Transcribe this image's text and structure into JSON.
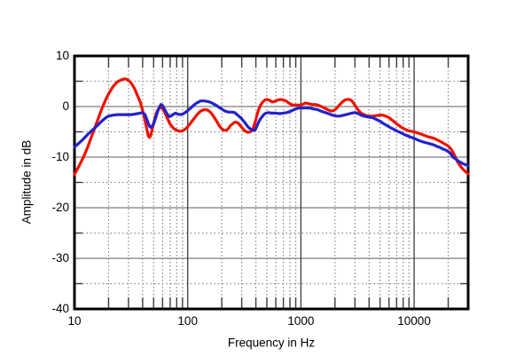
{
  "chart_data": {
    "type": "line",
    "title": "",
    "xlabel": "Frequency in Hz",
    "ylabel": "Amplitude in dB",
    "x_scale": "log",
    "xlim": [
      10,
      30000
    ],
    "ylim": [
      -40,
      10
    ],
    "grid": true,
    "legend": null,
    "x_ticks": [
      {
        "value": 10,
        "label": "10"
      },
      {
        "value": 100,
        "label": "100"
      },
      {
        "value": 1000,
        "label": "1000"
      },
      {
        "value": 10000,
        "label": "10000"
      }
    ],
    "y_ticks": [
      {
        "value": 10,
        "label": "10"
      },
      {
        "value": 0,
        "label": "0"
      },
      {
        "value": -10,
        "label": "-10"
      },
      {
        "value": -20,
        "label": "-20"
      },
      {
        "value": -30,
        "label": "-30"
      },
      {
        "value": -40,
        "label": "-40"
      }
    ],
    "x_major_gridlines": [
      100,
      1000,
      10000
    ],
    "x_minor_gridlines": [
      20,
      30,
      40,
      50,
      60,
      70,
      80,
      90,
      200,
      300,
      400,
      500,
      600,
      700,
      800,
      900,
      2000,
      3000,
      4000,
      5000,
      6000,
      7000,
      8000,
      9000,
      20000
    ],
    "y_major_gridlines": [
      0,
      -10,
      -20,
      -30
    ],
    "y_minor_gridlines": [
      5,
      -5,
      -15,
      -25,
      -35
    ],
    "colors": {
      "frame": "#000000",
      "grid_major_h": "#7d7d7d",
      "grid_major_v": "#3d3d3d",
      "grid_minor": "#8a8a8a",
      "minor_tick": "#3d3d3d"
    },
    "series": [
      {
        "name": "red-trace",
        "color": "#ee1100",
        "points": [
          [
            10,
            -13.4
          ],
          [
            11,
            -11.7
          ],
          [
            12,
            -10.0
          ],
          [
            13,
            -8.2
          ],
          [
            14,
            -6.2
          ],
          [
            15,
            -4.4
          ],
          [
            16,
            -2.7
          ],
          [
            17,
            -1.1
          ],
          [
            18,
            0.3
          ],
          [
            19,
            1.5
          ],
          [
            20,
            2.5
          ],
          [
            22,
            4.0
          ],
          [
            24,
            4.9
          ],
          [
            26,
            5.3
          ],
          [
            28,
            5.5
          ],
          [
            30,
            5.2
          ],
          [
            32,
            4.5
          ],
          [
            34,
            3.5
          ],
          [
            36,
            2.2
          ],
          [
            38,
            1.0
          ],
          [
            40,
            -0.8
          ],
          [
            42,
            -2.8
          ],
          [
            44,
            -5.0
          ],
          [
            45,
            -5.9
          ],
          [
            46,
            -6.1
          ],
          [
            47,
            -5.8
          ],
          [
            48,
            -5.0
          ],
          [
            50,
            -3.3
          ],
          [
            52,
            -1.8
          ],
          [
            54,
            -0.8
          ],
          [
            56,
            -0.3
          ],
          [
            58,
            -0.2
          ],
          [
            60,
            -0.5
          ],
          [
            63,
            -1.2
          ],
          [
            66,
            -2.3
          ],
          [
            70,
            -3.5
          ],
          [
            75,
            -4.3
          ],
          [
            80,
            -4.7
          ],
          [
            85,
            -4.9
          ],
          [
            90,
            -4.8
          ],
          [
            95,
            -4.5
          ],
          [
            100,
            -4.0
          ],
          [
            105,
            -3.4
          ],
          [
            110,
            -2.8
          ],
          [
            120,
            -1.7
          ],
          [
            130,
            -0.9
          ],
          [
            140,
            -0.6
          ],
          [
            150,
            -0.7
          ],
          [
            160,
            -1.2
          ],
          [
            170,
            -2.0
          ],
          [
            180,
            -2.9
          ],
          [
            190,
            -3.8
          ],
          [
            200,
            -4.4
          ],
          [
            210,
            -4.7
          ],
          [
            220,
            -4.7
          ],
          [
            230,
            -4.3
          ],
          [
            240,
            -3.7
          ],
          [
            250,
            -3.4
          ],
          [
            260,
            -3.1
          ],
          [
            270,
            -3.1
          ],
          [
            280,
            -3.3
          ],
          [
            290,
            -3.7
          ],
          [
            300,
            -4.1
          ],
          [
            320,
            -4.8
          ],
          [
            340,
            -5.1
          ],
          [
            360,
            -5.0
          ],
          [
            380,
            -4.2
          ],
          [
            400,
            -2.6
          ],
          [
            410,
            -1.6
          ],
          [
            420,
            -0.8
          ],
          [
            440,
            0.3
          ],
          [
            460,
            0.9
          ],
          [
            480,
            1.3
          ],
          [
            500,
            1.4
          ],
          [
            520,
            1.3
          ],
          [
            540,
            1.1
          ],
          [
            560,
            0.9
          ],
          [
            580,
            1.0
          ],
          [
            600,
            1.1
          ],
          [
            630,
            1.3
          ],
          [
            660,
            1.4
          ],
          [
            700,
            1.3
          ],
          [
            740,
            1.1
          ],
          [
            780,
            0.7
          ],
          [
            820,
            0.4
          ],
          [
            860,
            0.3
          ],
          [
            900,
            0.3
          ],
          [
            950,
            0.3
          ],
          [
            1000,
            0.3
          ],
          [
            1050,
            0.5
          ],
          [
            1100,
            0.7
          ],
          [
            1150,
            0.6
          ],
          [
            1250,
            0.4
          ],
          [
            1350,
            0.4
          ],
          [
            1450,
            0.2
          ],
          [
            1550,
            -0.1
          ],
          [
            1650,
            -0.4
          ],
          [
            1750,
            -0.7
          ],
          [
            1850,
            -0.9
          ],
          [
            1950,
            -0.8
          ],
          [
            2050,
            -0.4
          ],
          [
            2150,
            0.1
          ],
          [
            2250,
            0.6
          ],
          [
            2350,
            1.0
          ],
          [
            2450,
            1.3
          ],
          [
            2550,
            1.4
          ],
          [
            2650,
            1.4
          ],
          [
            2750,
            1.3
          ],
          [
            2850,
            1.0
          ],
          [
            2950,
            0.5
          ],
          [
            3050,
            0.0
          ],
          [
            3200,
            -0.7
          ],
          [
            3400,
            -1.3
          ],
          [
            3600,
            -1.6
          ],
          [
            3800,
            -1.8
          ],
          [
            4000,
            -1.9
          ],
          [
            4300,
            -1.9
          ],
          [
            4600,
            -1.8
          ],
          [
            5000,
            -1.7
          ],
          [
            5300,
            -1.7
          ],
          [
            5600,
            -1.9
          ],
          [
            6000,
            -2.2
          ],
          [
            6500,
            -2.8
          ],
          [
            7000,
            -3.4
          ],
          [
            7500,
            -3.9
          ],
          [
            8000,
            -4.3
          ],
          [
            8500,
            -4.6
          ],
          [
            9000,
            -4.8
          ],
          [
            9500,
            -4.9
          ],
          [
            10000,
            -5.0
          ],
          [
            11000,
            -5.3
          ],
          [
            12000,
            -5.6
          ],
          [
            13000,
            -5.9
          ],
          [
            14000,
            -6.1
          ],
          [
            15000,
            -6.3
          ],
          [
            16000,
            -6.6
          ],
          [
            17000,
            -6.9
          ],
          [
            18000,
            -7.2
          ],
          [
            19000,
            -7.5
          ],
          [
            20000,
            -7.8
          ],
          [
            21000,
            -8.3
          ],
          [
            22000,
            -9.0
          ],
          [
            23000,
            -9.9
          ],
          [
            24000,
            -10.8
          ],
          [
            25500,
            -11.7
          ],
          [
            27000,
            -12.4
          ],
          [
            28500,
            -12.9
          ],
          [
            30000,
            -13.3
          ]
        ]
      },
      {
        "name": "blue-trace",
        "color": "#2222cc",
        "points": [
          [
            10,
            -8.0
          ],
          [
            11,
            -7.2
          ],
          [
            12,
            -6.4
          ],
          [
            13,
            -5.6
          ],
          [
            14,
            -4.9
          ],
          [
            15,
            -4.3
          ],
          [
            16,
            -3.7
          ],
          [
            17,
            -3.1
          ],
          [
            18,
            -2.6
          ],
          [
            19,
            -2.2
          ],
          [
            20,
            -1.9
          ],
          [
            22,
            -1.7
          ],
          [
            24,
            -1.6
          ],
          [
            26,
            -1.6
          ],
          [
            28,
            -1.6
          ],
          [
            30,
            -1.6
          ],
          [
            32,
            -1.6
          ],
          [
            34,
            -1.5
          ],
          [
            36,
            -1.4
          ],
          [
            38,
            -1.3
          ],
          [
            40,
            -1.2
          ],
          [
            42,
            -1.6
          ],
          [
            44,
            -2.8
          ],
          [
            45,
            -3.4
          ],
          [
            46,
            -3.9
          ],
          [
            47,
            -4.1
          ],
          [
            48,
            -4.0
          ],
          [
            50,
            -3.4
          ],
          [
            52,
            -2.3
          ],
          [
            54,
            -1.1
          ],
          [
            56,
            -0.2
          ],
          [
            58,
            0.4
          ],
          [
            60,
            0.2
          ],
          [
            63,
            -0.7
          ],
          [
            66,
            -1.5
          ],
          [
            69,
            -2.0
          ],
          [
            72,
            -1.8
          ],
          [
            75,
            -1.5
          ],
          [
            78,
            -1.3
          ],
          [
            82,
            -1.5
          ],
          [
            86,
            -1.6
          ],
          [
            90,
            -1.5
          ],
          [
            95,
            -1.2
          ],
          [
            100,
            -0.8
          ],
          [
            105,
            -0.4
          ],
          [
            110,
            0.0
          ],
          [
            115,
            0.4
          ],
          [
            120,
            0.7
          ],
          [
            125,
            0.9
          ],
          [
            130,
            1.1
          ],
          [
            140,
            1.1
          ],
          [
            150,
            1.0
          ],
          [
            160,
            0.8
          ],
          [
            170,
            0.5
          ],
          [
            180,
            0.2
          ],
          [
            190,
            -0.2
          ],
          [
            200,
            -0.5
          ],
          [
            210,
            -0.8
          ],
          [
            220,
            -1.0
          ],
          [
            230,
            -1.1
          ],
          [
            240,
            -1.1
          ],
          [
            250,
            -1.1
          ],
          [
            260,
            -1.2
          ],
          [
            270,
            -1.5
          ],
          [
            280,
            -1.8
          ],
          [
            290,
            -2.1
          ],
          [
            300,
            -2.4
          ],
          [
            320,
            -3.2
          ],
          [
            340,
            -4.0
          ],
          [
            360,
            -4.5
          ],
          [
            380,
            -4.7
          ],
          [
            395,
            -4.6
          ],
          [
            410,
            -3.8
          ],
          [
            425,
            -3.0
          ],
          [
            440,
            -2.4
          ],
          [
            455,
            -2.0
          ],
          [
            470,
            -1.6
          ],
          [
            490,
            -1.3
          ],
          [
            520,
            -1.2
          ],
          [
            550,
            -1.3
          ],
          [
            600,
            -1.3
          ],
          [
            650,
            -1.4
          ],
          [
            700,
            -1.3
          ],
          [
            750,
            -1.2
          ],
          [
            800,
            -1.0
          ],
          [
            850,
            -0.7
          ],
          [
            900,
            -0.5
          ],
          [
            950,
            -0.3
          ],
          [
            1000,
            -0.3
          ],
          [
            1100,
            -0.3
          ],
          [
            1200,
            -0.3
          ],
          [
            1300,
            -0.5
          ],
          [
            1400,
            -0.6
          ],
          [
            1500,
            -0.9
          ],
          [
            1600,
            -1.1
          ],
          [
            1700,
            -1.3
          ],
          [
            1800,
            -1.5
          ],
          [
            1900,
            -1.7
          ],
          [
            2000,
            -1.8
          ],
          [
            2100,
            -1.9
          ],
          [
            2200,
            -1.9
          ],
          [
            2400,
            -1.7
          ],
          [
            2600,
            -1.5
          ],
          [
            2800,
            -1.3
          ],
          [
            3000,
            -1.2
          ],
          [
            3200,
            -1.4
          ],
          [
            3400,
            -1.7
          ],
          [
            3600,
            -1.9
          ],
          [
            3800,
            -2.0
          ],
          [
            4000,
            -2.1
          ],
          [
            4300,
            -2.2
          ],
          [
            4600,
            -2.5
          ],
          [
            5000,
            -2.9
          ],
          [
            5400,
            -3.4
          ],
          [
            5800,
            -3.8
          ],
          [
            6200,
            -4.2
          ],
          [
            6600,
            -4.5
          ],
          [
            7000,
            -4.8
          ],
          [
            7500,
            -5.1
          ],
          [
            8000,
            -5.4
          ],
          [
            8500,
            -5.7
          ],
          [
            9000,
            -5.9
          ],
          [
            9500,
            -6.1
          ],
          [
            10000,
            -6.3
          ],
          [
            11000,
            -6.7
          ],
          [
            12000,
            -7.0
          ],
          [
            13000,
            -7.2
          ],
          [
            14000,
            -7.4
          ],
          [
            15000,
            -7.6
          ],
          [
            16000,
            -7.9
          ],
          [
            17000,
            -8.1
          ],
          [
            18000,
            -8.4
          ],
          [
            19000,
            -8.6
          ],
          [
            20000,
            -8.9
          ],
          [
            21000,
            -9.3
          ],
          [
            22000,
            -10.0
          ],
          [
            23000,
            -10.3
          ],
          [
            24000,
            -10.6
          ],
          [
            25500,
            -11.0
          ],
          [
            27000,
            -11.3
          ],
          [
            28500,
            -11.5
          ],
          [
            30000,
            -11.7
          ]
        ]
      }
    ]
  }
}
